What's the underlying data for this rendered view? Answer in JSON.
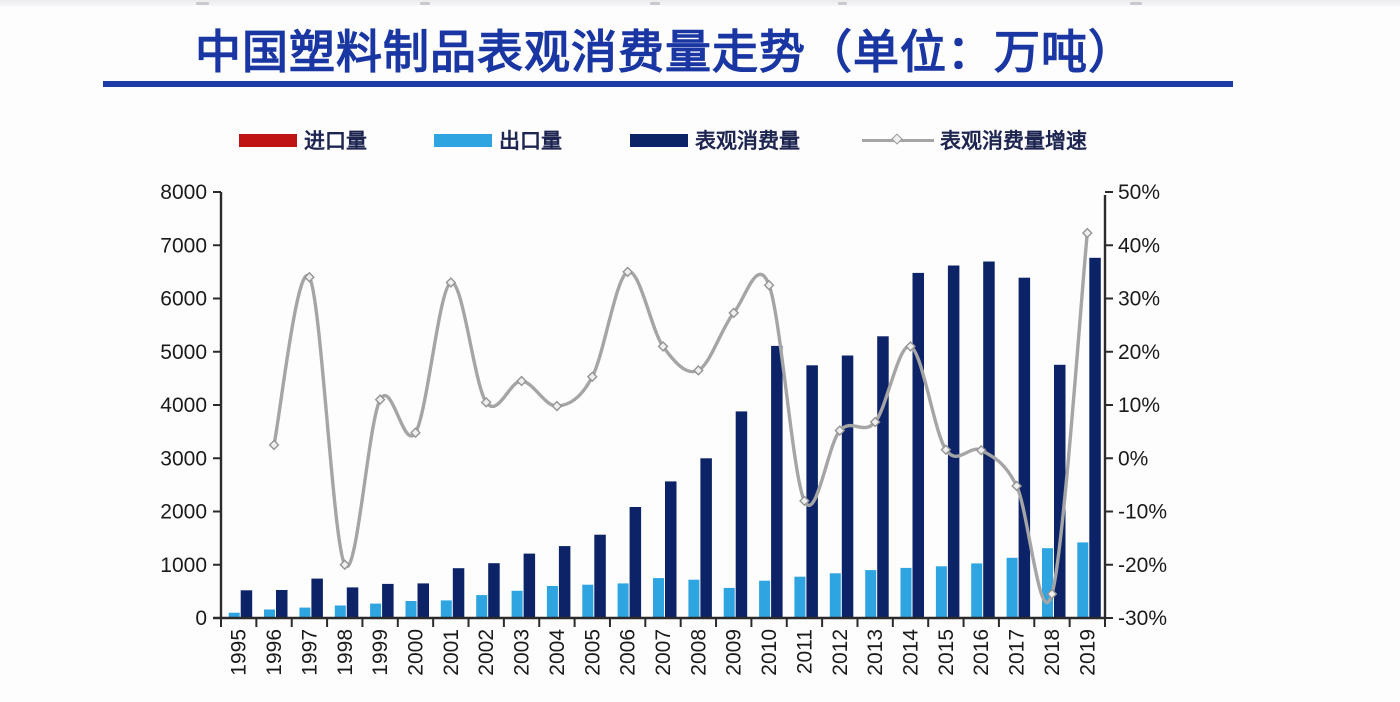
{
  "page": {
    "background": "#fdfdfe"
  },
  "title": {
    "text": "中国塑料制品表观消费量走势（单位：万吨）",
    "color": "#1936a3",
    "underline_color": "#1e3ca6"
  },
  "legend": {
    "items": [
      {
        "label": "进口量",
        "marker": "bar",
        "color": "#c01313"
      },
      {
        "label": "出口量",
        "marker": "bar",
        "color": "#2ea4e0"
      },
      {
        "label": "表观消费量",
        "marker": "bar",
        "color": "#0d2368"
      },
      {
        "label": "表观消费量增速",
        "marker": "line",
        "color": "#a5a5a5"
      }
    ]
  },
  "chart_data": {
    "type": "bar+line combo",
    "title": "中国塑料制品表观消费量走势（单位：万吨）",
    "categories": [
      "1995",
      "1996",
      "1997",
      "1998",
      "1999",
      "2000",
      "2001",
      "2002",
      "2003",
      "2004",
      "2005",
      "2006",
      "2007",
      "2008",
      "2009",
      "2010",
      "2011",
      "2012",
      "2013",
      "2014",
      "2015",
      "2016",
      "2017",
      "2018",
      "2019"
    ],
    "series": [
      {
        "name": "进口量",
        "type": "bar",
        "axis": "left",
        "color": "#c01313",
        "values": [],
        "note": "appears in legend only; bars are too small to be visible in the plot"
      },
      {
        "name": "出口量",
        "type": "bar",
        "axis": "left",
        "color": "#2ea4e0",
        "values": [
          100,
          160,
          195,
          235,
          270,
          320,
          330,
          430,
          510,
          600,
          625,
          650,
          750,
          720,
          565,
          700,
          775,
          840,
          900,
          940,
          970,
          1025,
          1130,
          1310,
          1420
        ]
      },
      {
        "name": "表观消费量",
        "type": "bar",
        "axis": "left",
        "color": "#0d2368",
        "values": [
          520,
          525,
          740,
          575,
          640,
          650,
          935,
          1030,
          1210,
          1350,
          1565,
          2085,
          2565,
          3000,
          3880,
          5110,
          4745,
          4930,
          5290,
          6480,
          6620,
          6695,
          6390,
          4755,
          6765
        ]
      },
      {
        "name": "表观消费量增速",
        "type": "line",
        "axis": "right",
        "color": "#a5a5a5",
        "values": [
          null,
          2.5,
          34,
          -20,
          11,
          4.8,
          33,
          10.5,
          14.5,
          9.8,
          15.3,
          35,
          21,
          16.5,
          27.3,
          32.5,
          -8,
          5.2,
          6.8,
          21,
          1.6,
          1.5,
          -5.2,
          -25.5,
          42.3
        ]
      }
    ],
    "left_axis": {
      "min": 0,
      "max": 8000,
      "step": 1000,
      "ticks": [
        "0",
        "1000",
        "2000",
        "3000",
        "4000",
        "5000",
        "6000",
        "7000",
        "8000"
      ]
    },
    "right_axis": {
      "min": -30,
      "max": 50,
      "step": 10,
      "suffix": "%",
      "ticks": [
        "-30%",
        "-20%",
        "-10%",
        "0%",
        "10%",
        "20%",
        "30%",
        "40%",
        "50%"
      ]
    },
    "grid": false,
    "legend_position": "top",
    "x_label_rotation": -90,
    "axis_color": "#2b2b2b",
    "tick_label_color": "#1a1a1a",
    "line_marker": "diamond"
  }
}
